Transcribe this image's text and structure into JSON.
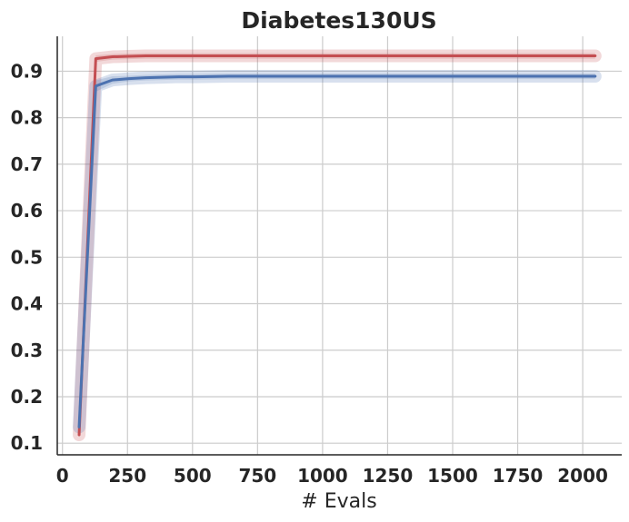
{
  "chart_data": {
    "type": "line",
    "title": "Diabetes130US",
    "xlabel": "# Evals",
    "ylabel": "",
    "xlim": [
      -20,
      2150
    ],
    "ylim": [
      0.075,
      0.975
    ],
    "xticks": [
      0,
      250,
      500,
      750,
      1000,
      1250,
      1500,
      1750,
      2000
    ],
    "xtick_labels": [
      "0",
      "250",
      "500",
      "750",
      "1000",
      "1250",
      "1500",
      "1750",
      "2000"
    ],
    "yticks": [
      0.1,
      0.2,
      0.3,
      0.4,
      0.5,
      0.6,
      0.7,
      0.8,
      0.9
    ],
    "ytick_labels": [
      "0.1",
      "0.2",
      "0.3",
      "0.4",
      "0.5",
      "0.6",
      "0.7",
      "0.8",
      "0.9"
    ],
    "grid": true,
    "legend": "none",
    "series": [
      {
        "color": "#c44e52",
        "band_color": "#c44e52",
        "x": [
          64,
          128,
          192,
          256,
          320,
          384,
          448,
          512,
          640,
          768,
          1024,
          1280,
          1536,
          1792,
          2048
        ],
        "y": [
          0.118,
          0.927,
          0.931,
          0.932,
          0.933,
          0.933,
          0.933,
          0.933,
          0.933,
          0.933,
          0.933,
          0.933,
          0.933,
          0.933,
          0.933
        ],
        "band": [
          0.01,
          0.007,
          0.006,
          0.006,
          0.006,
          0.006,
          0.006,
          0.006,
          0.006,
          0.006,
          0.006,
          0.006,
          0.006,
          0.006,
          0.006
        ]
      },
      {
        "color": "#4c72b0",
        "band_color": "#4c72b0",
        "x": [
          64,
          128,
          192,
          256,
          320,
          384,
          448,
          512,
          640,
          768,
          1024,
          1280,
          1536,
          1792,
          2048
        ],
        "y": [
          0.135,
          0.868,
          0.881,
          0.884,
          0.886,
          0.887,
          0.888,
          0.888,
          0.889,
          0.889,
          0.889,
          0.889,
          0.889,
          0.889,
          0.889
        ],
        "band": [
          0.02,
          0.012,
          0.008,
          0.006,
          0.006,
          0.006,
          0.006,
          0.006,
          0.006,
          0.006,
          0.006,
          0.006,
          0.006,
          0.006,
          0.006
        ]
      }
    ]
  }
}
